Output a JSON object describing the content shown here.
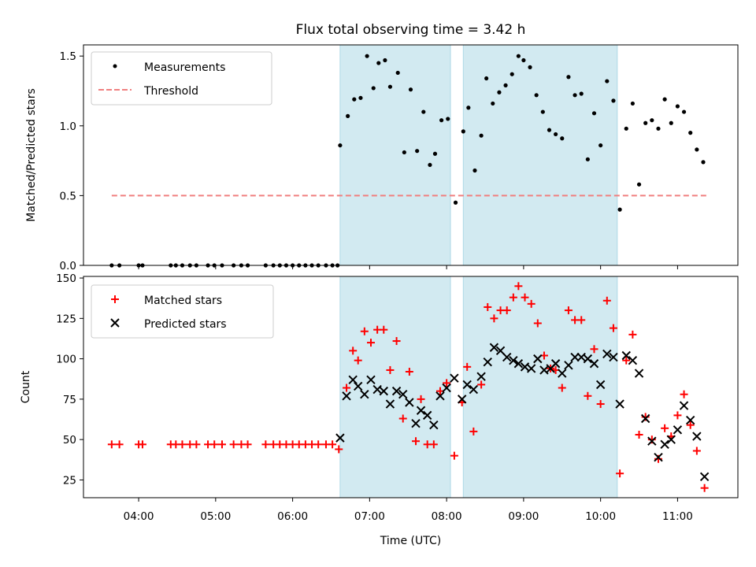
{
  "chart_data": [
    {
      "type": "scatter",
      "title": "Flux total observing time = 3.42 h",
      "xlabel": "",
      "ylabel": "Matched/Predicted stars",
      "xlim": [
        "03:17",
        "11:47"
      ],
      "ylim": [
        0,
        1.58
      ],
      "yticks": [
        "0.0",
        "0.5",
        "1.0",
        "1.5"
      ],
      "legend_position": "upper-left",
      "legend": [
        {
          "label": "Measurements",
          "marker": "dot",
          "color": "#000000"
        },
        {
          "label": "Threshold",
          "marker": "dashed-line",
          "color": "#f08080"
        }
      ],
      "shaded_intervals": [
        [
          "06:37",
          "08:03"
        ],
        [
          "08:13",
          "10:13"
        ]
      ],
      "shade_color": "#add8e6",
      "threshold": {
        "value": 0.5,
        "x_start": "03:39",
        "x_end": "11:23",
        "color": "#f08080"
      },
      "series": [
        {
          "name": "Measurements",
          "marker": "dot",
          "color": "#000000",
          "points": [
            [
              "03:39",
              0.0
            ],
            [
              "03:45",
              0.0
            ],
            [
              "04:00",
              0.0
            ],
            [
              "04:03",
              0.0
            ],
            [
              "04:25",
              0.0
            ],
            [
              "04:29",
              0.0
            ],
            [
              "04:34",
              0.0
            ],
            [
              "04:40",
              0.0
            ],
            [
              "04:45",
              0.0
            ],
            [
              "04:54",
              0.0
            ],
            [
              "04:59",
              0.0
            ],
            [
              "05:05",
              0.0
            ],
            [
              "05:14",
              0.0
            ],
            [
              "05:20",
              0.0
            ],
            [
              "05:25",
              0.0
            ],
            [
              "05:39",
              0.0
            ],
            [
              "05:45",
              0.0
            ],
            [
              "05:50",
              0.0
            ],
            [
              "05:55",
              0.0
            ],
            [
              "06:00",
              0.0
            ],
            [
              "06:05",
              0.0
            ],
            [
              "06:10",
              0.0
            ],
            [
              "06:15",
              0.0
            ],
            [
              "06:20",
              0.0
            ],
            [
              "06:26",
              0.0
            ],
            [
              "06:31",
              0.0
            ],
            [
              "06:35",
              0.0
            ],
            [
              "06:37",
              0.86
            ],
            [
              "06:43",
              1.07
            ],
            [
              "06:48",
              1.19
            ],
            [
              "06:53",
              1.2
            ],
            [
              "06:58",
              1.5
            ],
            [
              "07:03",
              1.27
            ],
            [
              "07:07",
              1.45
            ],
            [
              "07:12",
              1.47
            ],
            [
              "07:16",
              1.28
            ],
            [
              "07:22",
              1.38
            ],
            [
              "07:27",
              0.81
            ],
            [
              "07:32",
              1.26
            ],
            [
              "07:37",
              0.82
            ],
            [
              "07:42",
              1.1
            ],
            [
              "07:47",
              0.72
            ],
            [
              "07:51",
              0.8
            ],
            [
              "07:56",
              1.04
            ],
            [
              "08:01",
              1.05
            ],
            [
              "08:07",
              0.45
            ],
            [
              "08:13",
              0.96
            ],
            [
              "08:17",
              1.13
            ],
            [
              "08:22",
              0.68
            ],
            [
              "08:27",
              0.93
            ],
            [
              "08:31",
              1.34
            ],
            [
              "08:36",
              1.16
            ],
            [
              "08:41",
              1.24
            ],
            [
              "08:46",
              1.29
            ],
            [
              "08:51",
              1.37
            ],
            [
              "08:56",
              1.5
            ],
            [
              "09:00",
              1.47
            ],
            [
              "09:05",
              1.42
            ],
            [
              "09:10",
              1.22
            ],
            [
              "09:15",
              1.1
            ],
            [
              "09:20",
              0.97
            ],
            [
              "09:25",
              0.94
            ],
            [
              "09:30",
              0.91
            ],
            [
              "09:35",
              1.35
            ],
            [
              "09:40",
              1.22
            ],
            [
              "09:45",
              1.23
            ],
            [
              "09:50",
              0.76
            ],
            [
              "09:55",
              1.09
            ],
            [
              "10:00",
              0.86
            ],
            [
              "10:05",
              1.32
            ],
            [
              "10:10",
              1.18
            ],
            [
              "10:15",
              0.4
            ],
            [
              "10:20",
              0.98
            ],
            [
              "10:25",
              1.16
            ],
            [
              "10:30",
              0.58
            ],
            [
              "10:35",
              1.02
            ],
            [
              "10:40",
              1.04
            ],
            [
              "10:45",
              0.98
            ],
            [
              "10:50",
              1.19
            ],
            [
              "10:55",
              1.02
            ],
            [
              "11:00",
              1.14
            ],
            [
              "11:05",
              1.1
            ],
            [
              "11:10",
              0.95
            ],
            [
              "11:15",
              0.83
            ],
            [
              "11:20",
              0.74
            ]
          ]
        }
      ]
    },
    {
      "type": "scatter",
      "title": "",
      "xlabel": "Time (UTC)",
      "ylabel": "Count",
      "xlim": [
        "03:17",
        "11:47"
      ],
      "ylim": [
        14,
        151
      ],
      "xticks": [
        "04:00",
        "05:00",
        "06:00",
        "07:00",
        "08:00",
        "09:00",
        "10:00",
        "11:00"
      ],
      "yticks": [
        "25",
        "50",
        "75",
        "100",
        "125",
        "150"
      ],
      "legend_position": "upper-left",
      "legend": [
        {
          "label": "Matched stars",
          "marker": "plus",
          "color": "#ff0000"
        },
        {
          "label": "Predicted stars",
          "marker": "x",
          "color": "#000000"
        }
      ],
      "shaded_intervals": [
        [
          "06:37",
          "08:03"
        ],
        [
          "08:13",
          "10:13"
        ]
      ],
      "shade_color": "#add8e6",
      "series": [
        {
          "name": "Matched stars",
          "marker": "plus",
          "color": "#ff0000",
          "points": [
            [
              "03:39",
              47
            ],
            [
              "03:45",
              47
            ],
            [
              "04:00",
              47
            ],
            [
              "04:03",
              47
            ],
            [
              "04:25",
              47
            ],
            [
              "04:29",
              47
            ],
            [
              "04:34",
              47
            ],
            [
              "04:40",
              47
            ],
            [
              "04:45",
              47
            ],
            [
              "04:54",
              47
            ],
            [
              "04:59",
              47
            ],
            [
              "05:05",
              47
            ],
            [
              "05:14",
              47
            ],
            [
              "05:20",
              47
            ],
            [
              "05:25",
              47
            ],
            [
              "05:39",
              47
            ],
            [
              "05:45",
              47
            ],
            [
              "05:50",
              47
            ],
            [
              "05:55",
              47
            ],
            [
              "06:00",
              47
            ],
            [
              "06:05",
              47
            ],
            [
              "06:10",
              47
            ],
            [
              "06:15",
              47
            ],
            [
              "06:20",
              47
            ],
            [
              "06:26",
              47
            ],
            [
              "06:31",
              47
            ],
            [
              "06:36",
              44
            ],
            [
              "06:42",
              82
            ],
            [
              "06:47",
              105
            ],
            [
              "06:51",
              99
            ],
            [
              "06:56",
              117
            ],
            [
              "07:01",
              110
            ],
            [
              "07:06",
              118
            ],
            [
              "07:11",
              118
            ],
            [
              "07:16",
              93
            ],
            [
              "07:21",
              111
            ],
            [
              "07:26",
              63
            ],
            [
              "07:31",
              92
            ],
            [
              "07:36",
              49
            ],
            [
              "07:40",
              75
            ],
            [
              "07:45",
              47
            ],
            [
              "07:50",
              47
            ],
            [
              "07:55",
              80
            ],
            [
              "08:00",
              85
            ],
            [
              "08:06",
              40
            ],
            [
              "08:12",
              73
            ],
            [
              "08:16",
              95
            ],
            [
              "08:21",
              55
            ],
            [
              "08:27",
              84
            ],
            [
              "08:32",
              132
            ],
            [
              "08:37",
              125
            ],
            [
              "08:42",
              130
            ],
            [
              "08:47",
              130
            ],
            [
              "08:52",
              138
            ],
            [
              "08:56",
              145
            ],
            [
              "09:01",
              138
            ],
            [
              "09:06",
              134
            ],
            [
              "09:11",
              122
            ],
            [
              "09:16",
              102
            ],
            [
              "09:21",
              94
            ],
            [
              "09:25",
              93
            ],
            [
              "09:30",
              82
            ],
            [
              "09:35",
              130
            ],
            [
              "09:40",
              124
            ],
            [
              "09:45",
              124
            ],
            [
              "09:50",
              77
            ],
            [
              "09:55",
              106
            ],
            [
              "10:00",
              72
            ],
            [
              "10:05",
              136
            ],
            [
              "10:10",
              119
            ],
            [
              "10:15",
              29
            ],
            [
              "10:20",
              99
            ],
            [
              "10:25",
              115
            ],
            [
              "10:30",
              53
            ],
            [
              "10:35",
              64
            ],
            [
              "10:40",
              50
            ],
            [
              "10:45",
              38
            ],
            [
              "10:50",
              57
            ],
            [
              "10:55",
              52
            ],
            [
              "11:00",
              65
            ],
            [
              "11:05",
              78
            ],
            [
              "11:10",
              59
            ],
            [
              "11:15",
              43
            ],
            [
              "11:21",
              20
            ]
          ]
        },
        {
          "name": "Predicted stars",
          "marker": "x",
          "color": "#000000",
          "points": [
            [
              "06:37",
              51
            ],
            [
              "06:42",
              77
            ],
            [
              "06:47",
              87
            ],
            [
              "06:51",
              83
            ],
            [
              "06:56",
              78
            ],
            [
              "07:01",
              87
            ],
            [
              "07:06",
              81
            ],
            [
              "07:11",
              80
            ],
            [
              "07:16",
              72
            ],
            [
              "07:21",
              80
            ],
            [
              "07:26",
              78
            ],
            [
              "07:31",
              73
            ],
            [
              "07:36",
              60
            ],
            [
              "07:40",
              68
            ],
            [
              "07:45",
              65
            ],
            [
              "07:50",
              59
            ],
            [
              "07:55",
              77
            ],
            [
              "08:00",
              82
            ],
            [
              "08:06",
              88
            ],
            [
              "08:12",
              75
            ],
            [
              "08:16",
              84
            ],
            [
              "08:21",
              81
            ],
            [
              "08:27",
              89
            ],
            [
              "08:32",
              98
            ],
            [
              "08:37",
              107
            ],
            [
              "08:42",
              105
            ],
            [
              "08:47",
              101
            ],
            [
              "08:52",
              99
            ],
            [
              "08:56",
              97
            ],
            [
              "09:01",
              95
            ],
            [
              "09:06",
              94
            ],
            [
              "09:11",
              100
            ],
            [
              "09:16",
              93
            ],
            [
              "09:21",
              94
            ],
            [
              "09:25",
              97
            ],
            [
              "09:30",
              91
            ],
            [
              "09:35",
              96
            ],
            [
              "09:40",
              101
            ],
            [
              "09:45",
              101
            ],
            [
              "09:50",
              100
            ],
            [
              "09:55",
              97
            ],
            [
              "10:00",
              84
            ],
            [
              "10:05",
              103
            ],
            [
              "10:10",
              101
            ],
            [
              "10:15",
              72
            ],
            [
              "10:20",
              102
            ],
            [
              "10:25",
              99
            ],
            [
              "10:30",
              91
            ],
            [
              "10:35",
              63
            ],
            [
              "10:40",
              49
            ],
            [
              "10:45",
              39
            ],
            [
              "10:50",
              47
            ],
            [
              "10:55",
              50
            ],
            [
              "11:00",
              56
            ],
            [
              "11:05",
              71
            ],
            [
              "11:10",
              62
            ],
            [
              "11:15",
              52
            ],
            [
              "11:21",
              27
            ]
          ]
        }
      ]
    }
  ]
}
